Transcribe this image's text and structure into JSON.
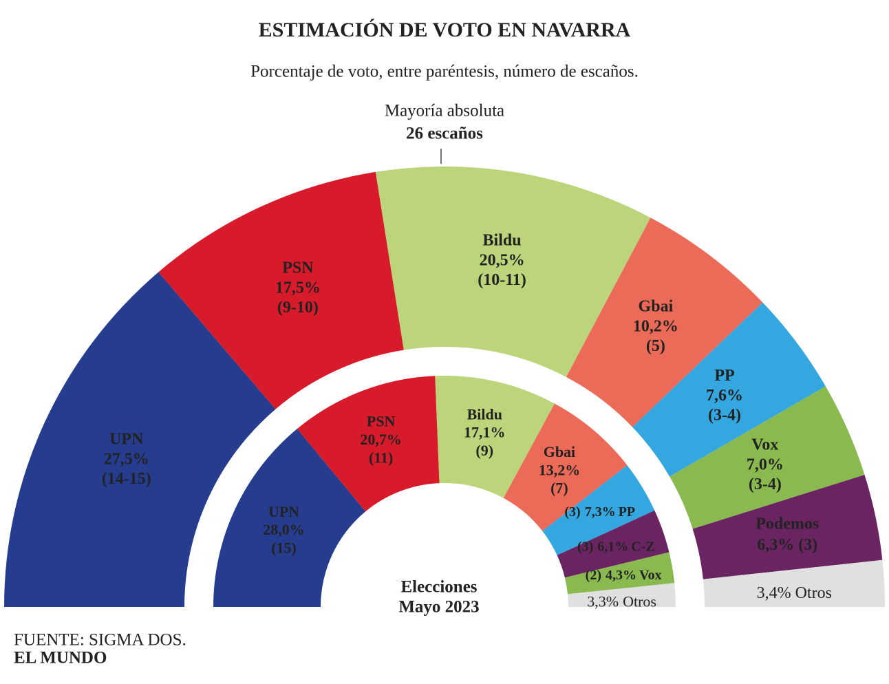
{
  "title": "ESTIMACIÓN DE VOTO EN NAVARRA",
  "subtitle": "Porcentaje de voto, entre paréntesis, número de escaños.",
  "annotation": {
    "line1": "Mayoría absoluta",
    "line2": "26 escaños"
  },
  "center_label": {
    "line1": "Elecciones",
    "line2": "Mayo 2023"
  },
  "source": "FUENTE: SIGMA DOS.",
  "publisher": "EL MUNDO",
  "chart_data": [
    {
      "type": "pie",
      "half": true,
      "categories": [
        "UPN",
        "PSN",
        "Bildu",
        "Gbai",
        "PP",
        "Vox",
        "Podemos",
        "Otros"
      ],
      "values": [
        27.5,
        17.5,
        20.5,
        10.2,
        7.6,
        7.0,
        6.3,
        3.4
      ],
      "value_labels": [
        "27,5%",
        "17,5%",
        "20,5%",
        "10,2%",
        "7,6%",
        "7,0%",
        "6,3%",
        "3,4%"
      ],
      "seats": [
        "(14-15)",
        "(9-10)",
        "(10-11)",
        "(5)",
        "(3-4)",
        "(3-4)",
        "(3)",
        null
      ],
      "colors": [
        "#253c8f",
        "#d81b2a",
        "#bcd47a",
        "#ec6b58",
        "#35a7e0",
        "#8aba4f",
        "#6a2462",
        "#e0e0e0"
      ]
    },
    {
      "type": "pie",
      "half": true,
      "categories": [
        "UPN",
        "PSN",
        "Bildu",
        "Gbai",
        "PP",
        "C-Z",
        "Vox",
        "Otros"
      ],
      "values": [
        28.0,
        20.7,
        17.1,
        13.2,
        7.3,
        6.1,
        4.3,
        3.3
      ],
      "value_labels": [
        "28,0%",
        "20,7%",
        "17,1%",
        "13,2%",
        "7,3%",
        "6,1%",
        "4,3%",
        "3,3%"
      ],
      "seats": [
        "(15)",
        "(11)",
        "(9)",
        "(7)",
        "(3)",
        "(3)",
        "(2)",
        null
      ],
      "colors": [
        "#253c8f",
        "#d81b2a",
        "#bcd47a",
        "#ec6b58",
        "#35a7e0",
        "#6a2462",
        "#8aba4f",
        "#e0e0e0"
      ]
    }
  ]
}
